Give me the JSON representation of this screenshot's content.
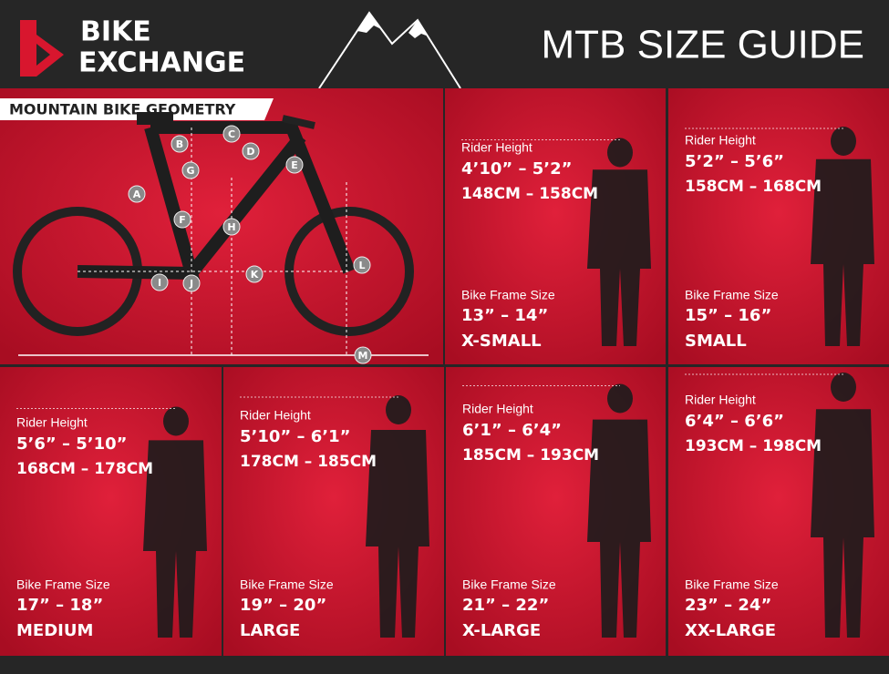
{
  "header": {
    "brand": [
      "BIKE",
      "EXCHANGE"
    ],
    "title": "MTB SIZE GUIDE"
  },
  "geometry": {
    "title": "MOUNTAIN BIKE GEOMETRY",
    "labels": [
      "A",
      "B",
      "C",
      "D",
      "E",
      "F",
      "G",
      "H",
      "I",
      "J",
      "K",
      "L",
      "M"
    ]
  },
  "sizes": [
    {
      "rider_label": "Rider Height",
      "height_imperial": "4’10” – 5’2”",
      "height_metric": "148CM – 158CM",
      "frame_label": "Bike Frame Size",
      "frame_size": "13” – 14”",
      "size_name": "X-SMALL"
    },
    {
      "rider_label": "Rider Height",
      "height_imperial": "5’2” – 5’6”",
      "height_metric": "158CM – 168CM",
      "frame_label": "Bike Frame Size",
      "frame_size": "15” – 16”",
      "size_name": "SMALL"
    },
    {
      "rider_label": "Rider Height",
      "height_imperial": "5’6” – 5’10”",
      "height_metric": "168CM – 178CM",
      "frame_label": "Bike Frame Size",
      "frame_size": "17” – 18”",
      "size_name": "MEDIUM"
    },
    {
      "rider_label": "Rider Height",
      "height_imperial": "5’10” – 6’1”",
      "height_metric": "178CM – 185CM",
      "frame_label": "Bike Frame Size",
      "frame_size": "19” – 20”",
      "size_name": "LARGE"
    },
    {
      "rider_label": "Rider Height",
      "height_imperial": "6’1” – 6’4”",
      "height_metric": "185CM – 193CM",
      "frame_label": "Bike Frame Size",
      "frame_size": "21” – 22”",
      "size_name": "X-LARGE"
    },
    {
      "rider_label": "Rider Height",
      "height_imperial": "6’4” – 6’6”",
      "height_metric": "193CM – 198CM",
      "frame_label": "Bike Frame Size",
      "frame_size": "23” – 24”",
      "size_name": "XX-LARGE"
    }
  ]
}
